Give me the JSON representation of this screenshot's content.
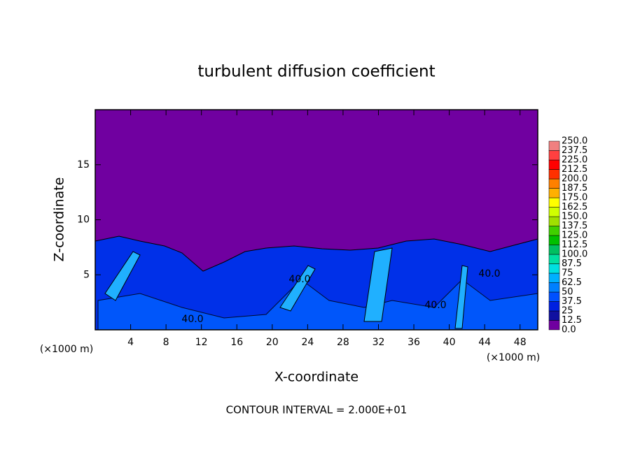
{
  "chart_data": {
    "type": "contour",
    "title": "turbulent diffusion coefficient",
    "x_label": "X-coordinate",
    "y_label": "Z-coordinate",
    "x_unit_left": "(×1000 m)",
    "x_unit_right": "(×1000 m)",
    "footnote": "CONTOUR INTERVAL = 2.000E+01",
    "xlim": [
      0,
      50
    ],
    "xticks": [
      4,
      8,
      12,
      16,
      20,
      24,
      28,
      32,
      36,
      40,
      44,
      48
    ],
    "ylim": [
      0,
      20
    ],
    "yticks": [
      5,
      10,
      15
    ],
    "contour_labels": [
      "40.0",
      "40.0",
      "40.0",
      "40.0"
    ],
    "colorbar": {
      "levels": [
        {
          "value": 0,
          "label": "0.0"
        },
        12.5,
        25,
        37.5,
        50,
        62.5,
        75,
        87.5,
        {
          "value": 100,
          "label": "100.0"
        },
        112.5,
        {
          "value": 125,
          "label": "125.0"
        },
        137.5,
        {
          "value": 150,
          "label": "150.0"
        },
        162.5,
        {
          "value": 175,
          "label": "175.0"
        },
        187.5,
        {
          "value": 200,
          "label": "200.0"
        },
        212.5,
        {
          "value": 225,
          "label": "225.0"
        },
        237.5,
        {
          "value": 250,
          "label": "250.0"
        }
      ],
      "colors": [
        "#7000a0",
        "#1010a0",
        "#0020e0",
        "#0050ff",
        "#0080ff",
        "#00b0ff",
        "#00e0e0",
        "#00e0a0",
        "#00c060",
        "#00c000",
        "#40d000",
        "#a0e000",
        "#d0ff00",
        "#ffff00",
        "#ffb000",
        "#ff8000",
        "#ff3000",
        "#ff0000",
        "#ff4040",
        "#f08080"
      ]
    }
  }
}
